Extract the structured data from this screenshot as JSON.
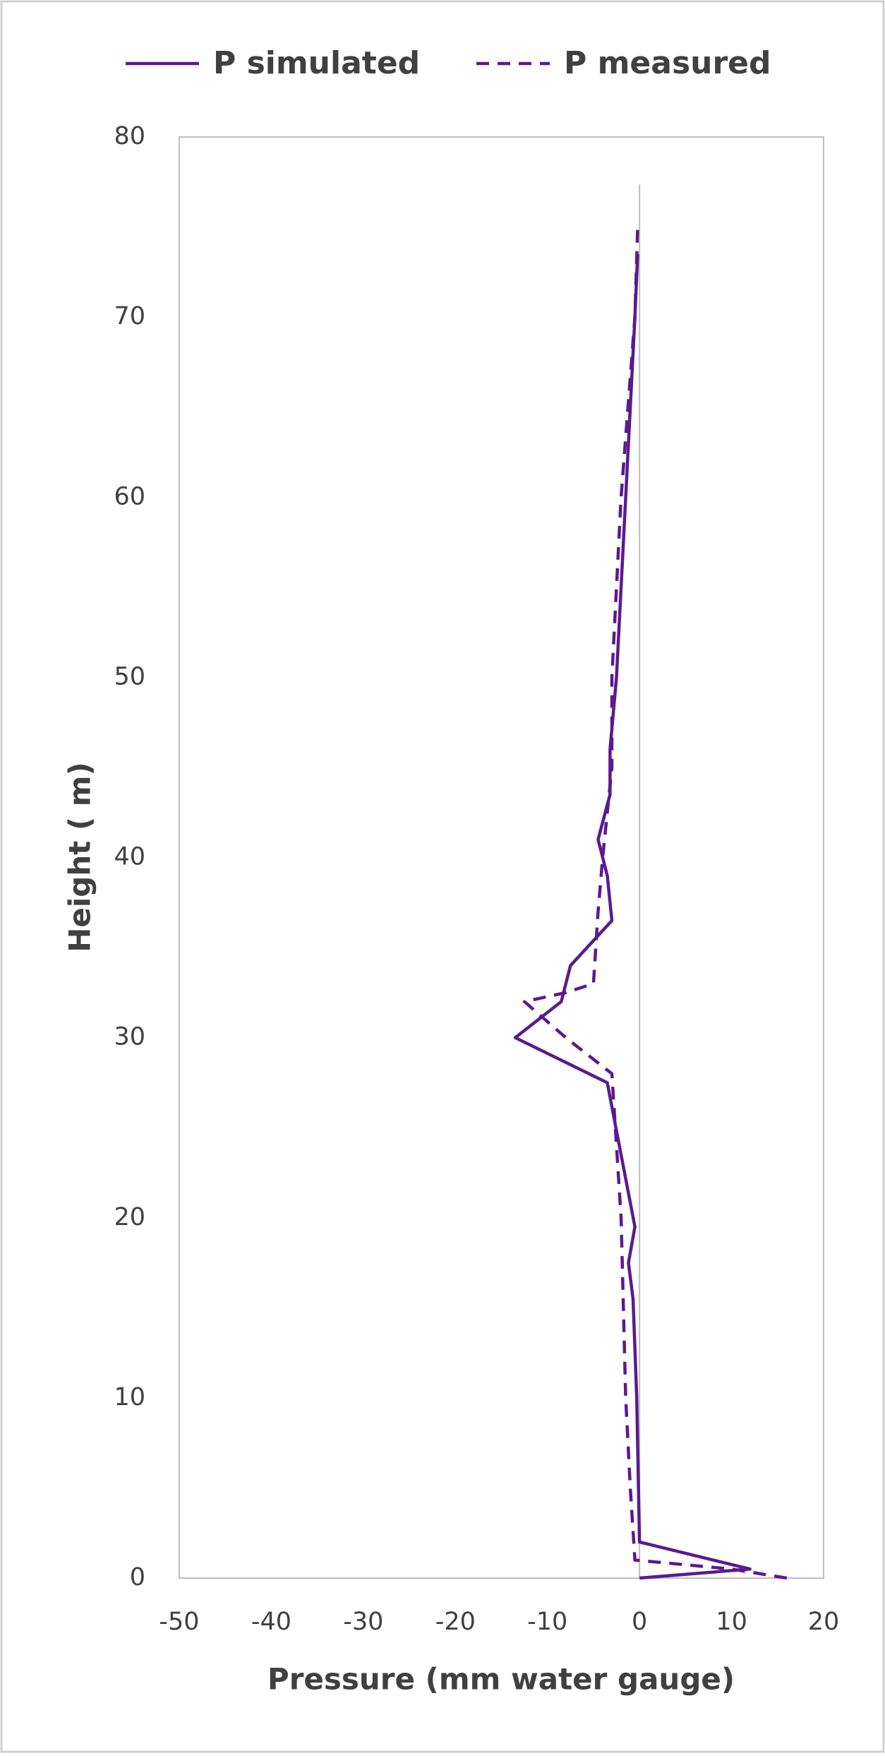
{
  "chart_data": {
    "type": "line",
    "x_label": "Pressure (mm water gauge)",
    "y_label": "Height ( m)",
    "xlim": [
      -50,
      20
    ],
    "xticks": [
      -50,
      -40,
      -30,
      -20,
      -10,
      0,
      10,
      20
    ],
    "ylim": [
      0,
      80
    ],
    "yticks": [
      0,
      10,
      20,
      30,
      40,
      50,
      60,
      70,
      80
    ],
    "grid": false,
    "legend": "top",
    "series": [
      {
        "name": "P simulated",
        "color": "#5b1a8e",
        "line_style": "solid",
        "x": [
          0,
          12,
          0,
          -0.3,
          -0.7,
          -1.2,
          -0.5,
          -3.5,
          -13.5,
          -8.5,
          -7.5,
          -3,
          -3.5,
          -4.5,
          -3.2,
          -3.2,
          -2.5,
          -1.5,
          -0.5,
          -0.2
        ],
        "values": [
          0,
          0.5,
          2,
          10,
          15.5,
          17.5,
          19.5,
          27.5,
          30,
          32,
          34,
          36.5,
          39,
          41,
          43.5,
          46,
          50,
          60,
          70,
          73.5
        ]
      },
      {
        "name": "P measured",
        "color": "#5b1a8e",
        "line_style": "dashed",
        "x": [
          16,
          10,
          -0.5,
          -1,
          -1.5,
          -2,
          -2.5,
          -3,
          -8,
          -12.5,
          -8,
          -5,
          -4.5,
          -4,
          -3,
          -3,
          -2,
          -0.5,
          -0.2
        ],
        "values": [
          0,
          0.5,
          1,
          5,
          10,
          20,
          24,
          28,
          30,
          32,
          32.5,
          33,
          37,
          40,
          45,
          50,
          60,
          70,
          75
        ]
      }
    ]
  }
}
